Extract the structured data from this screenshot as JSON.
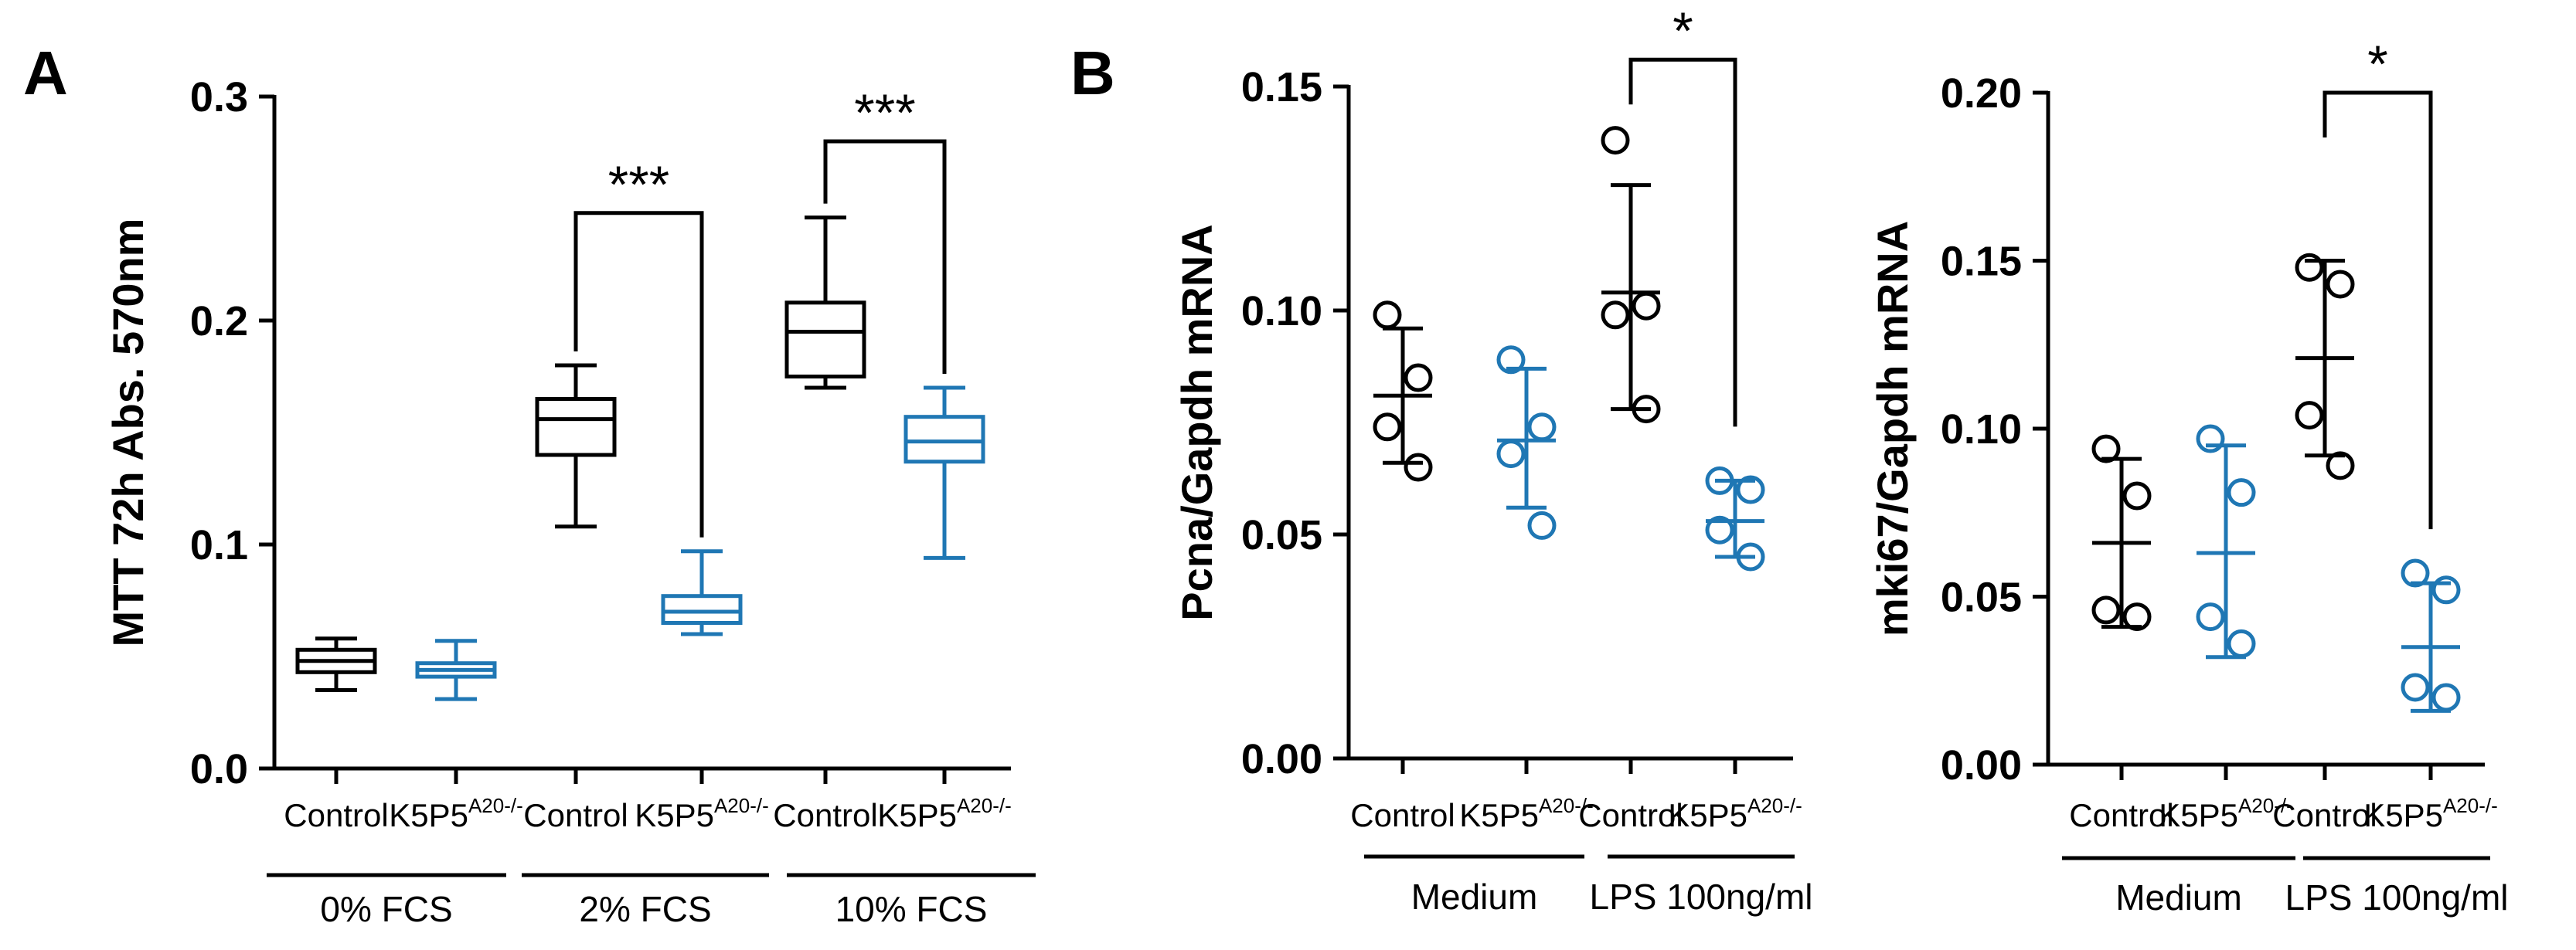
{
  "colors": {
    "control": "#000000",
    "ko": "#1f77b4"
  },
  "panels": {
    "a": "A",
    "b": "B"
  },
  "chart_data": [
    {
      "type": "box",
      "panel": "A",
      "ylabel": "MTT 72h Abs. 570nm",
      "ylim": [
        0,
        0.3
      ],
      "yticks": [
        "0.0",
        "0.1",
        "0.2",
        "0.3"
      ],
      "categories": [
        {
          "main": "Control",
          "sup": "",
          "color": "control"
        },
        {
          "main": "K5P5",
          "sup": "A20-/-",
          "color": "ko"
        },
        {
          "main": "Control",
          "sup": "",
          "color": "control"
        },
        {
          "main": "K5P5",
          "sup": "A20-/-",
          "color": "ko"
        },
        {
          "main": "Control",
          "sup": "",
          "color": "control"
        },
        {
          "main": "K5P5",
          "sup": "A20-/-",
          "color": "ko"
        }
      ],
      "groups": [
        "0% FCS",
        "2% FCS",
        "10% FCS"
      ],
      "boxes": [
        {
          "min": 0.035,
          "q1": 0.043,
          "median": 0.048,
          "q3": 0.053,
          "max": 0.058
        },
        {
          "min": 0.031,
          "q1": 0.041,
          "median": 0.044,
          "q3": 0.047,
          "max": 0.057
        },
        {
          "min": 0.108,
          "q1": 0.14,
          "median": 0.156,
          "q3": 0.165,
          "max": 0.18
        },
        {
          "min": 0.06,
          "q1": 0.065,
          "median": 0.07,
          "q3": 0.077,
          "max": 0.097
        },
        {
          "min": 0.17,
          "q1": 0.175,
          "median": 0.195,
          "q3": 0.208,
          "max": 0.246
        },
        {
          "min": 0.094,
          "q1": 0.137,
          "median": 0.146,
          "q3": 0.157,
          "max": 0.17
        }
      ],
      "significance": [
        {
          "from": 2,
          "to": 3,
          "label": "***",
          "bracket_y": 0.248
        },
        {
          "from": 4,
          "to": 5,
          "label": "***",
          "bracket_y": 0.28
        }
      ]
    },
    {
      "type": "scatter",
      "panel": "B",
      "ylabel": "Pcna/Gapdh mRNA",
      "ylim": [
        0,
        0.15
      ],
      "yticks": [
        "0.00",
        "0.05",
        "0.10",
        "0.15"
      ],
      "categories": [
        {
          "main": "Control",
          "sup": "",
          "color": "control"
        },
        {
          "main": "K5P5",
          "sup": "A20-/-",
          "color": "ko"
        },
        {
          "main": "Control",
          "sup": "",
          "color": "control"
        },
        {
          "main": "K5P5",
          "sup": "A20-/-",
          "color": "ko"
        }
      ],
      "groups": [
        "Medium",
        "LPS 100ng/ml"
      ],
      "series": [
        {
          "points": [
            0.099,
            0.085,
            0.074,
            0.065
          ],
          "mean": 0.081,
          "sd_low": 0.066,
          "sd_high": 0.096
        },
        {
          "points": [
            0.089,
            0.074,
            0.068,
            0.052
          ],
          "mean": 0.071,
          "sd_low": 0.056,
          "sd_high": 0.087
        },
        {
          "points": [
            0.138,
            0.101,
            0.099,
            0.078
          ],
          "mean": 0.104,
          "sd_low": 0.078,
          "sd_high": 0.128
        },
        {
          "points": [
            0.062,
            0.06,
            0.051,
            0.045
          ],
          "mean": 0.053,
          "sd_low": 0.045,
          "sd_high": 0.062
        }
      ],
      "significance": [
        {
          "from": 2,
          "to": 3,
          "label": "*",
          "bracket_y": 0.156
        }
      ]
    },
    {
      "type": "scatter",
      "panel": "",
      "ylabel": "mki67/Gapdh mRNA",
      "ylim": [
        0,
        0.2
      ],
      "yticks": [
        "0.00",
        "0.05",
        "0.10",
        "0.15",
        "0.20"
      ],
      "categories": [
        {
          "main": "Control",
          "sup": "",
          "color": "control"
        },
        {
          "main": "K5P5",
          "sup": "A20-/-",
          "color": "ko"
        },
        {
          "main": "Control",
          "sup": "",
          "color": "control"
        },
        {
          "main": "K5P5",
          "sup": "A20-/-",
          "color": "ko"
        }
      ],
      "groups": [
        "Medium",
        "LPS 100ng/ml"
      ],
      "series": [
        {
          "points": [
            0.094,
            0.08,
            0.046,
            0.044
          ],
          "mean": 0.066,
          "sd_low": 0.041,
          "sd_high": 0.091
        },
        {
          "points": [
            0.097,
            0.081,
            0.044,
            0.036
          ],
          "mean": 0.063,
          "sd_low": 0.032,
          "sd_high": 0.095
        },
        {
          "points": [
            0.148,
            0.143,
            0.104,
            0.089
          ],
          "mean": 0.121,
          "sd_low": 0.092,
          "sd_high": 0.15
        },
        {
          "points": [
            0.057,
            0.052,
            0.023,
            0.02
          ],
          "mean": 0.035,
          "sd_low": 0.016,
          "sd_high": 0.054
        }
      ],
      "significance": [
        {
          "from": 2,
          "to": 3,
          "label": "*",
          "bracket_y": 0.2
        }
      ]
    }
  ]
}
